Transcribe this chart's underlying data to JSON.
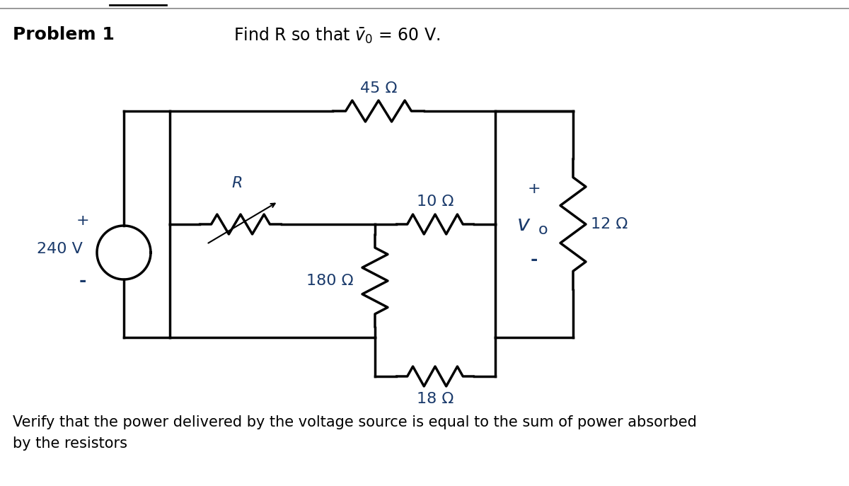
{
  "title_bold": "Problem 1",
  "bottom_text": "Verify that the power delivered by the voltage source is equal to the sum of power absorbed\nby the resistors",
  "bg_color": "#ffffff",
  "line_color": "#000000",
  "text_color": "#1a3a6b",
  "resistor_45": "45 Ω",
  "resistor_R": "R",
  "resistor_10": "10 Ω",
  "resistor_180": "180 Ω",
  "resistor_18": "18 Ω",
  "resistor_12": "12 Ω",
  "voltage_source": "240 V",
  "vo_label": "v_o",
  "plus_vs": "+",
  "minus_vs": "-",
  "plus_vo": "+",
  "minus_vo": "-",
  "fig_width": 12.0,
  "fig_height": 6.87,
  "dpi": 100
}
